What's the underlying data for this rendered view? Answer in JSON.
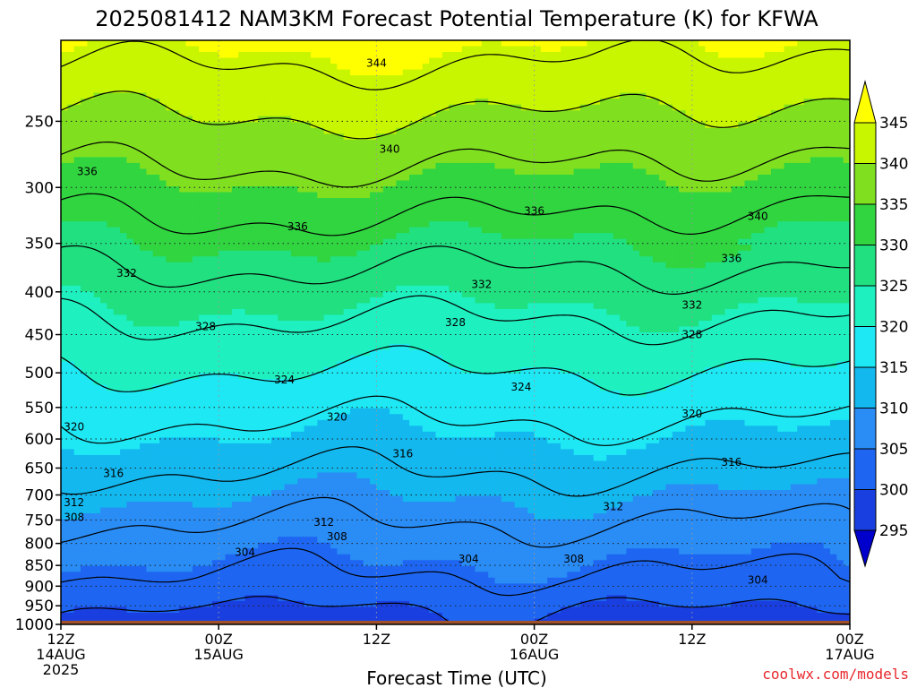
{
  "title": "2025081412 NAM3KM Forecast Potential Temperature (K) for KFWA",
  "credit": "coolwx.com/models",
  "chart_data": {
    "type": "heatmap",
    "title": "2025081412 NAM3KM Forecast Potential Temperature (K) for KFWA",
    "xlabel": "Forecast Time (UTC)",
    "ylabel": "",
    "x_range_hours": [
      0,
      60
    ],
    "x_ticks": [
      {
        "hour": 0,
        "lines": [
          "12Z",
          "14AUG",
          "2025"
        ]
      },
      {
        "hour": 12,
        "lines": [
          "00Z",
          "15AUG"
        ]
      },
      {
        "hour": 24,
        "lines": [
          "12Z"
        ]
      },
      {
        "hour": 36,
        "lines": [
          "00Z",
          "16AUG"
        ]
      },
      {
        "hour": 48,
        "lines": [
          "12Z"
        ]
      },
      {
        "hour": 60,
        "lines": [
          "00Z",
          "17AUG"
        ]
      }
    ],
    "y_axis": {
      "scale": "log-pressure",
      "range_hpa": [
        1000,
        200
      ],
      "ticks": [
        250,
        300,
        350,
        400,
        450,
        500,
        550,
        600,
        650,
        700,
        750,
        800,
        850,
        900,
        950,
        1000
      ]
    },
    "colorbar": {
      "levels": [
        295,
        300,
        305,
        310,
        315,
        320,
        325,
        330,
        335,
        340,
        345
      ],
      "colors": [
        "#0000cc",
        "#1a3fe0",
        "#1e66f2",
        "#2a8cf5",
        "#13b8ef",
        "#1ee8f4",
        "#1ef0c0",
        "#20e080",
        "#30d540",
        "#80e020",
        "#c8f500",
        "#ffff00"
      ]
    },
    "contour_interval": 4,
    "contour_labels": [
      {
        "value": 344,
        "hour": 24,
        "p": 213
      },
      {
        "value": 340,
        "hour": 25,
        "p": 270
      },
      {
        "value": 336,
        "hour": 2,
        "p": 287
      },
      {
        "value": 336,
        "hour": 18,
        "p": 334
      },
      {
        "value": 336,
        "hour": 36,
        "p": 320
      },
      {
        "value": 340,
        "hour": 53,
        "p": 325
      },
      {
        "value": 336,
        "hour": 51,
        "p": 365
      },
      {
        "value": 332,
        "hour": 5,
        "p": 380
      },
      {
        "value": 332,
        "hour": 32,
        "p": 392
      },
      {
        "value": 332,
        "hour": 48,
        "p": 415
      },
      {
        "value": 328,
        "hour": 11,
        "p": 440
      },
      {
        "value": 328,
        "hour": 30,
        "p": 435
      },
      {
        "value": 328,
        "hour": 48,
        "p": 450
      },
      {
        "value": 324,
        "hour": 17,
        "p": 510
      },
      {
        "value": 324,
        "hour": 35,
        "p": 520
      },
      {
        "value": 320,
        "hour": 1,
        "p": 580
      },
      {
        "value": 320,
        "hour": 21,
        "p": 565
      },
      {
        "value": 320,
        "hour": 48,
        "p": 560
      },
      {
        "value": 316,
        "hour": 4,
        "p": 660
      },
      {
        "value": 316,
        "hour": 26,
        "p": 625
      },
      {
        "value": 316,
        "hour": 51,
        "p": 640
      },
      {
        "value": 312,
        "hour": 1,
        "p": 715
      },
      {
        "value": 312,
        "hour": 20,
        "p": 755
      },
      {
        "value": 312,
        "hour": 42,
        "p": 723
      },
      {
        "value": 308,
        "hour": 1,
        "p": 745
      },
      {
        "value": 308,
        "hour": 21,
        "p": 785
      },
      {
        "value": 308,
        "hour": 39,
        "p": 835
      },
      {
        "value": 304,
        "hour": 14,
        "p": 820
      },
      {
        "value": 304,
        "hour": 31,
        "p": 835
      },
      {
        "value": 304,
        "hour": 53,
        "p": 885
      }
    ]
  }
}
